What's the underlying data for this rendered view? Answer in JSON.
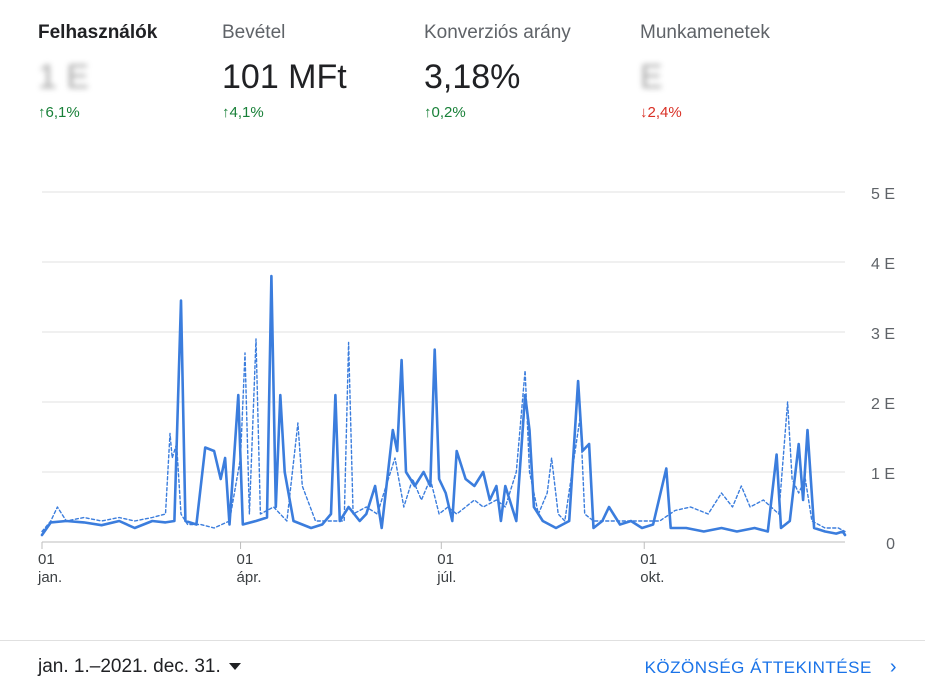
{
  "metrics": [
    {
      "label": "Felhasználók",
      "value": "1 E",
      "delta": "6,1%",
      "trend": "up",
      "active": true,
      "blurred": false
    },
    {
      "label": "Bevétel",
      "value": "101 MFt",
      "delta": "4,1%",
      "trend": "up",
      "active": false,
      "blurred": false
    },
    {
      "label": "Konverziós arány",
      "value": "3,18%",
      "delta": "0,2%",
      "trend": "up",
      "active": false,
      "blurred": false
    },
    {
      "label": "Munkamenetek",
      "value": "E",
      "delta": "2,4%",
      "trend": "down",
      "active": false,
      "blurred": true
    }
  ],
  "colors": {
    "accent": "#3b7ddd",
    "up": "#188038",
    "down": "#d93025",
    "grid": "#e0e0e0"
  },
  "chart_data": {
    "type": "line",
    "ylim": [
      0,
      5
    ],
    "y_ticks": [
      "0",
      "1 E",
      "2 E",
      "3 E",
      "4 E",
      "5 E"
    ],
    "x_ticks": [
      {
        "day": "01",
        "month": "jan."
      },
      {
        "day": "01",
        "month": "ápr."
      },
      {
        "day": "01",
        "month": "júl."
      },
      {
        "day": "01",
        "month": "okt."
      }
    ],
    "x_tick_dates": [
      "2021-01-01",
      "2021-04-01",
      "2021-07-01",
      "2021-10-01"
    ],
    "grid": true,
    "series": [
      {
        "style": "solid",
        "points": [
          [
            "2021-01-01",
            0.1
          ],
          [
            "2021-01-05",
            0.28
          ],
          [
            "2021-01-12",
            0.3
          ],
          [
            "2021-01-20",
            0.28
          ],
          [
            "2021-01-28",
            0.24
          ],
          [
            "2021-02-05",
            0.3
          ],
          [
            "2021-02-12",
            0.2
          ],
          [
            "2021-02-20",
            0.3
          ],
          [
            "2021-02-26",
            0.28
          ],
          [
            "2021-03-02",
            0.3
          ],
          [
            "2021-03-05",
            3.45
          ],
          [
            "2021-03-07",
            0.3
          ],
          [
            "2021-03-12",
            0.25
          ],
          [
            "2021-03-16",
            1.35
          ],
          [
            "2021-03-20",
            1.3
          ],
          [
            "2021-03-23",
            0.9
          ],
          [
            "2021-03-25",
            1.2
          ],
          [
            "2021-03-27",
            0.25
          ],
          [
            "2021-03-31",
            2.1
          ],
          [
            "2021-04-02",
            0.25
          ],
          [
            "2021-04-08",
            0.3
          ],
          [
            "2021-04-13",
            0.35
          ],
          [
            "2021-04-15",
            3.8
          ],
          [
            "2021-04-17",
            0.5
          ],
          [
            "2021-04-19",
            2.1
          ],
          [
            "2021-04-21",
            1.0
          ],
          [
            "2021-04-25",
            0.3
          ],
          [
            "2021-05-03",
            0.2
          ],
          [
            "2021-05-08",
            0.25
          ],
          [
            "2021-05-12",
            0.4
          ],
          [
            "2021-05-14",
            2.1
          ],
          [
            "2021-05-16",
            0.3
          ],
          [
            "2021-05-20",
            0.5
          ],
          [
            "2021-05-25",
            0.3
          ],
          [
            "2021-05-28",
            0.4
          ],
          [
            "2021-06-01",
            0.8
          ],
          [
            "2021-06-04",
            0.2
          ],
          [
            "2021-06-09",
            1.6
          ],
          [
            "2021-06-11",
            1.3
          ],
          [
            "2021-06-13",
            2.6
          ],
          [
            "2021-06-15",
            1.0
          ],
          [
            "2021-06-19",
            0.8
          ],
          [
            "2021-06-23",
            1.0
          ],
          [
            "2021-06-26",
            0.8
          ],
          [
            "2021-06-28",
            2.75
          ],
          [
            "2021-06-30",
            0.9
          ],
          [
            "2021-07-03",
            0.7
          ],
          [
            "2021-07-06",
            0.3
          ],
          [
            "2021-07-08",
            1.3
          ],
          [
            "2021-07-12",
            0.9
          ],
          [
            "2021-07-16",
            0.8
          ],
          [
            "2021-07-20",
            1.0
          ],
          [
            "2021-07-23",
            0.6
          ],
          [
            "2021-07-26",
            0.8
          ],
          [
            "2021-07-28",
            0.3
          ],
          [
            "2021-07-30",
            0.8
          ],
          [
            "2021-08-04",
            0.3
          ],
          [
            "2021-08-08",
            2.1
          ],
          [
            "2021-08-10",
            1.6
          ],
          [
            "2021-08-12",
            0.5
          ],
          [
            "2021-08-16",
            0.3
          ],
          [
            "2021-08-22",
            0.2
          ],
          [
            "2021-08-28",
            0.3
          ],
          [
            "2021-09-01",
            2.3
          ],
          [
            "2021-09-03",
            1.3
          ],
          [
            "2021-09-06",
            1.4
          ],
          [
            "2021-09-08",
            0.2
          ],
          [
            "2021-09-12",
            0.3
          ],
          [
            "2021-09-15",
            0.5
          ],
          [
            "2021-09-20",
            0.25
          ],
          [
            "2021-09-25",
            0.3
          ],
          [
            "2021-09-30",
            0.2
          ],
          [
            "2021-10-05",
            0.25
          ],
          [
            "2021-10-11",
            1.05
          ],
          [
            "2021-10-13",
            0.2
          ],
          [
            "2021-10-20",
            0.2
          ],
          [
            "2021-10-28",
            0.15
          ],
          [
            "2021-11-05",
            0.2
          ],
          [
            "2021-11-12",
            0.15
          ],
          [
            "2021-11-20",
            0.2
          ],
          [
            "2021-11-26",
            0.15
          ],
          [
            "2021-11-30",
            1.25
          ],
          [
            "2021-12-02",
            0.2
          ],
          [
            "2021-12-06",
            0.3
          ],
          [
            "2021-12-10",
            1.4
          ],
          [
            "2021-12-12",
            0.6
          ],
          [
            "2021-12-14",
            1.6
          ],
          [
            "2021-12-17",
            0.2
          ],
          [
            "2021-12-22",
            0.15
          ],
          [
            "2021-12-27",
            0.12
          ],
          [
            "2021-12-30",
            0.15
          ],
          [
            "2021-12-31",
            0.1
          ]
        ]
      },
      {
        "style": "dashed",
        "points": [
          [
            "2021-01-01",
            0.15
          ],
          [
            "2021-01-05",
            0.3
          ],
          [
            "2021-01-08",
            0.5
          ],
          [
            "2021-01-12",
            0.3
          ],
          [
            "2021-01-20",
            0.35
          ],
          [
            "2021-01-28",
            0.3
          ],
          [
            "2021-02-05",
            0.35
          ],
          [
            "2021-02-12",
            0.3
          ],
          [
            "2021-02-20",
            0.35
          ],
          [
            "2021-02-26",
            0.4
          ],
          [
            "2021-02-28",
            1.55
          ],
          [
            "2021-03-01",
            1.2
          ],
          [
            "2021-03-03",
            1.4
          ],
          [
            "2021-03-05",
            0.4
          ],
          [
            "2021-03-08",
            0.25
          ],
          [
            "2021-03-14",
            0.25
          ],
          [
            "2021-03-20",
            0.2
          ],
          [
            "2021-03-27",
            0.3
          ],
          [
            "2021-04-01",
            1.2
          ],
          [
            "2021-04-03",
            2.7
          ],
          [
            "2021-04-05",
            0.4
          ],
          [
            "2021-04-08",
            2.9
          ],
          [
            "2021-04-10",
            0.4
          ],
          [
            "2021-04-16",
            0.5
          ],
          [
            "2021-04-22",
            0.3
          ],
          [
            "2021-04-27",
            1.7
          ],
          [
            "2021-04-29",
            0.8
          ],
          [
            "2021-05-05",
            0.3
          ],
          [
            "2021-05-12",
            0.3
          ],
          [
            "2021-05-18",
            0.3
          ],
          [
            "2021-05-20",
            2.85
          ],
          [
            "2021-05-22",
            0.4
          ],
          [
            "2021-05-28",
            0.5
          ],
          [
            "2021-06-02",
            0.4
          ],
          [
            "2021-06-06",
            0.8
          ],
          [
            "2021-06-10",
            1.2
          ],
          [
            "2021-06-14",
            0.5
          ],
          [
            "2021-06-18",
            0.9
          ],
          [
            "2021-06-22",
            0.6
          ],
          [
            "2021-06-26",
            0.9
          ],
          [
            "2021-06-30",
            0.4
          ],
          [
            "2021-07-04",
            0.5
          ],
          [
            "2021-07-08",
            0.4
          ],
          [
            "2021-07-12",
            0.5
          ],
          [
            "2021-07-16",
            0.6
          ],
          [
            "2021-07-20",
            0.5
          ],
          [
            "2021-07-26",
            0.6
          ],
          [
            "2021-07-30",
            0.5
          ],
          [
            "2021-08-04",
            1.0
          ],
          [
            "2021-08-08",
            2.45
          ],
          [
            "2021-08-10",
            1.0
          ],
          [
            "2021-08-14",
            0.4
          ],
          [
            "2021-08-18",
            0.7
          ],
          [
            "2021-08-20",
            1.2
          ],
          [
            "2021-08-23",
            0.4
          ],
          [
            "2021-08-26",
            0.3
          ],
          [
            "2021-09-02",
            1.8
          ],
          [
            "2021-09-04",
            0.4
          ],
          [
            "2021-09-08",
            0.3
          ],
          [
            "2021-09-14",
            0.3
          ],
          [
            "2021-09-20",
            0.3
          ],
          [
            "2021-09-26",
            0.3
          ],
          [
            "2021-10-02",
            0.3
          ],
          [
            "2021-10-08",
            0.3
          ],
          [
            "2021-10-15",
            0.45
          ],
          [
            "2021-10-22",
            0.5
          ],
          [
            "2021-10-30",
            0.4
          ],
          [
            "2021-11-05",
            0.7
          ],
          [
            "2021-11-10",
            0.5
          ],
          [
            "2021-11-14",
            0.8
          ],
          [
            "2021-11-18",
            0.5
          ],
          [
            "2021-11-24",
            0.6
          ],
          [
            "2021-12-01",
            0.4
          ],
          [
            "2021-12-05",
            2.0
          ],
          [
            "2021-12-07",
            0.9
          ],
          [
            "2021-12-10",
            0.7
          ],
          [
            "2021-12-13",
            0.9
          ],
          [
            "2021-12-16",
            0.3
          ],
          [
            "2021-12-22",
            0.2
          ],
          [
            "2021-12-28",
            0.2
          ],
          [
            "2021-12-31",
            0.15
          ]
        ]
      }
    ]
  },
  "footer": {
    "date_range": "jan. 1.–2021. dec. 31.",
    "audience_link": "KÖZÖNSÉG ÁTTEKINTÉSE",
    "chevron": "›"
  }
}
